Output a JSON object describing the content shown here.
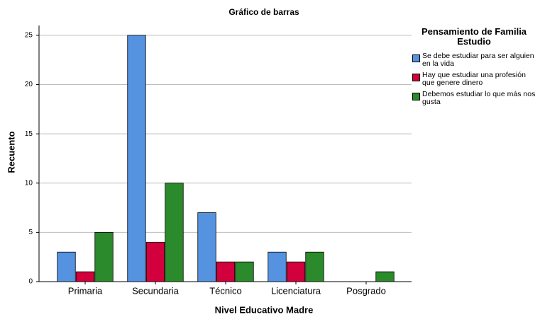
{
  "chart_data": {
    "type": "bar",
    "title": "Gráfico de barras",
    "xlabel": "Nivel Educativo Madre",
    "ylabel": "Recuento",
    "legend_title": "Pensamiento de Familia Estudio",
    "legend": "right",
    "categories": [
      "Primaria",
      "Secundaria",
      "Técnico",
      "Licenciatura",
      "Posgrado"
    ],
    "series": [
      {
        "name": "Se debe estudiar para ser alguien en la vida",
        "color": "#5592e0",
        "values": [
          3,
          25,
          7,
          3,
          0
        ]
      },
      {
        "name": "Hay que estudiar una profesión que genere dinero",
        "color": "#d2003c",
        "values": [
          1,
          4,
          2,
          2,
          0
        ]
      },
      {
        "name": "Debemos estudiar lo que más nos gusta",
        "color": "#2b8a2b",
        "values": [
          5,
          10,
          2,
          3,
          1
        ]
      }
    ],
    "ylim": [
      0,
      26
    ],
    "yticks": [
      0,
      5,
      10,
      15,
      20,
      25
    ],
    "grid": true
  }
}
